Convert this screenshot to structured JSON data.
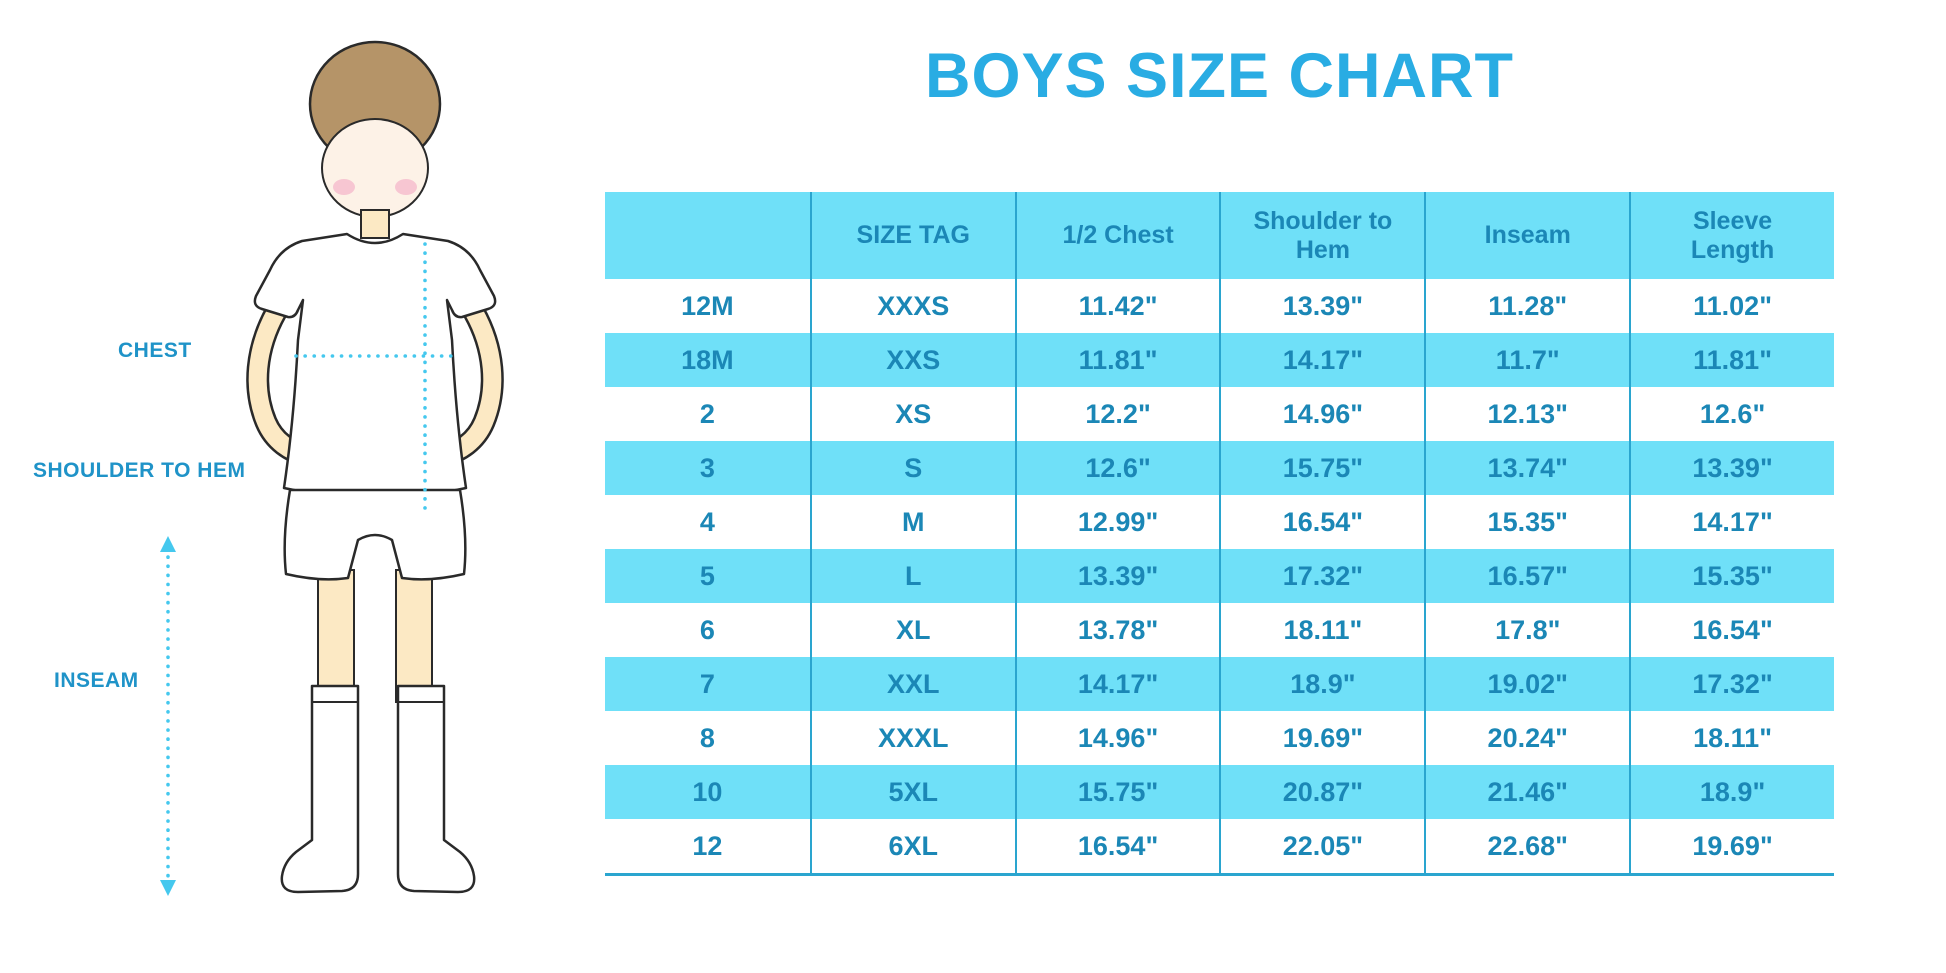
{
  "title": "BOYS SIZE CHART",
  "colors": {
    "title_blue": "#29ACE3",
    "table_text_blue": "#1B87B6",
    "band_cyan": "#6FE0F8",
    "border_blue": "#2AA5CF",
    "label_blue": "#1F93C8",
    "dotline_cyan": "#45C8EE",
    "skin": "#FCE9C4",
    "face": "#FDF2E7",
    "hair": "#B59468",
    "blush": "#F7C6D2",
    "outline": "#2A2A2A"
  },
  "diagram": {
    "labels": [
      {
        "id": "chest",
        "text": "CHEST"
      },
      {
        "id": "shoulder-to-hem",
        "text": "SHOULDER TO HEM"
      },
      {
        "id": "inseam",
        "text": "INSEAM"
      }
    ]
  },
  "chart_data": {
    "type": "table",
    "title": "BOYS SIZE CHART",
    "columns": [
      "",
      "SIZE TAG",
      "1/2 Chest",
      "Shoulder to Hem",
      "Inseam",
      "Sleeve Length"
    ],
    "rows": [
      [
        "12M",
        "XXXS",
        "11.42\"",
        "13.39\"",
        "11.28\"",
        "11.02\""
      ],
      [
        "18M",
        "XXS",
        "11.81\"",
        "14.17\"",
        "11.7\"",
        "11.81\""
      ],
      [
        "2",
        "XS",
        "12.2\"",
        "14.96\"",
        "12.13\"",
        "12.6\""
      ],
      [
        "3",
        "S",
        "12.6\"",
        "15.75\"",
        "13.74\"",
        "13.39\""
      ],
      [
        "4",
        "M",
        "12.99\"",
        "16.54\"",
        "15.35\"",
        "14.17\""
      ],
      [
        "5",
        "L",
        "13.39\"",
        "17.32\"",
        "16.57\"",
        "15.35\""
      ],
      [
        "6",
        "XL",
        "13.78\"",
        "18.11\"",
        "17.8\"",
        "16.54\""
      ],
      [
        "7",
        "XXL",
        "14.17\"",
        "18.9\"",
        "19.02\"",
        "17.32\""
      ],
      [
        "8",
        "XXXL",
        "14.96\"",
        "19.69\"",
        "20.24\"",
        "18.11\""
      ],
      [
        "10",
        "5XL",
        "15.75\"",
        "20.87\"",
        "21.46\"",
        "18.9\""
      ],
      [
        "12",
        "6XL",
        "16.54\"",
        "22.05\"",
        "22.68\"",
        "19.69\""
      ]
    ]
  }
}
